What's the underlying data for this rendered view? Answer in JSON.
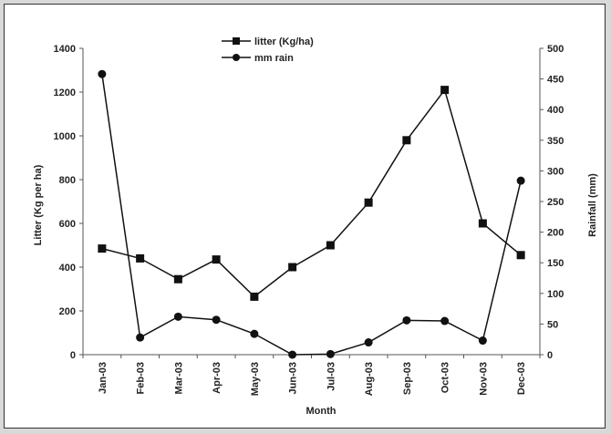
{
  "chart_data": {
    "type": "line",
    "categories": [
      "Jan-03",
      "Feb-03",
      "Mar-03",
      "Apr-03",
      "May-03",
      "Jun-03",
      "Jul-03",
      "Aug-03",
      "Sep-03",
      "Oct-03",
      "Nov-03",
      "Dec-03"
    ],
    "series": [
      {
        "name": "litter (Kg/ha)",
        "axis": "left",
        "marker": "square",
        "values": [
          485,
          440,
          345,
          435,
          265,
          400,
          500,
          695,
          980,
          1210,
          600,
          455
        ]
      },
      {
        "name": "mm rain",
        "axis": "right",
        "marker": "circle",
        "values": [
          458,
          28,
          62,
          57,
          34,
          0,
          1,
          20,
          56,
          55,
          23,
          284
        ]
      }
    ],
    "xlabel": "Month",
    "ylabel": "Litter (Kg per ha)",
    "y2label": "Rainfall (mm)",
    "ylim": [
      0,
      1400
    ],
    "y2lim": [
      0,
      500
    ],
    "yticks": [
      "0",
      "200",
      "400",
      "600",
      "800",
      "1000",
      "1200",
      "1400"
    ],
    "y2ticks": [
      "0",
      "50",
      "100",
      "150",
      "200",
      "250",
      "300",
      "350",
      "400",
      "450",
      "500"
    ],
    "grid": false,
    "legend_position": "top-center",
    "line_color": "#111111"
  }
}
